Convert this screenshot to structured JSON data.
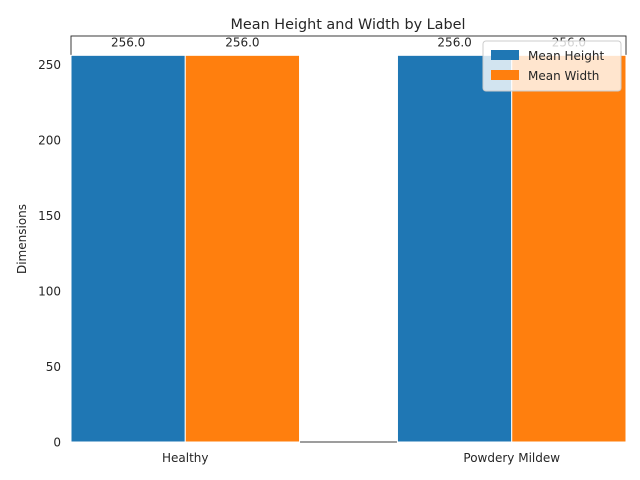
{
  "chart_data": {
    "type": "bar",
    "title": "Mean Height and Width by Label",
    "xlabel": "",
    "ylabel": "Dimensions",
    "categories": [
      "Healthy",
      "Powdery Mildew"
    ],
    "series": [
      {
        "name": "Mean Height",
        "values": [
          256.0,
          256.0
        ],
        "color": "#1f77b4"
      },
      {
        "name": "Mean Width",
        "values": [
          256.0,
          256.0
        ],
        "color": "#ff7f0e"
      }
    ],
    "data_labels": [
      [
        "256.0",
        "256.0"
      ],
      [
        "256.0",
        "256.0"
      ]
    ],
    "ylim": [
      0,
      268.8
    ],
    "yticks": [
      0,
      50,
      100,
      150,
      200,
      250
    ],
    "grid": false,
    "legend_position": "top-right"
  }
}
